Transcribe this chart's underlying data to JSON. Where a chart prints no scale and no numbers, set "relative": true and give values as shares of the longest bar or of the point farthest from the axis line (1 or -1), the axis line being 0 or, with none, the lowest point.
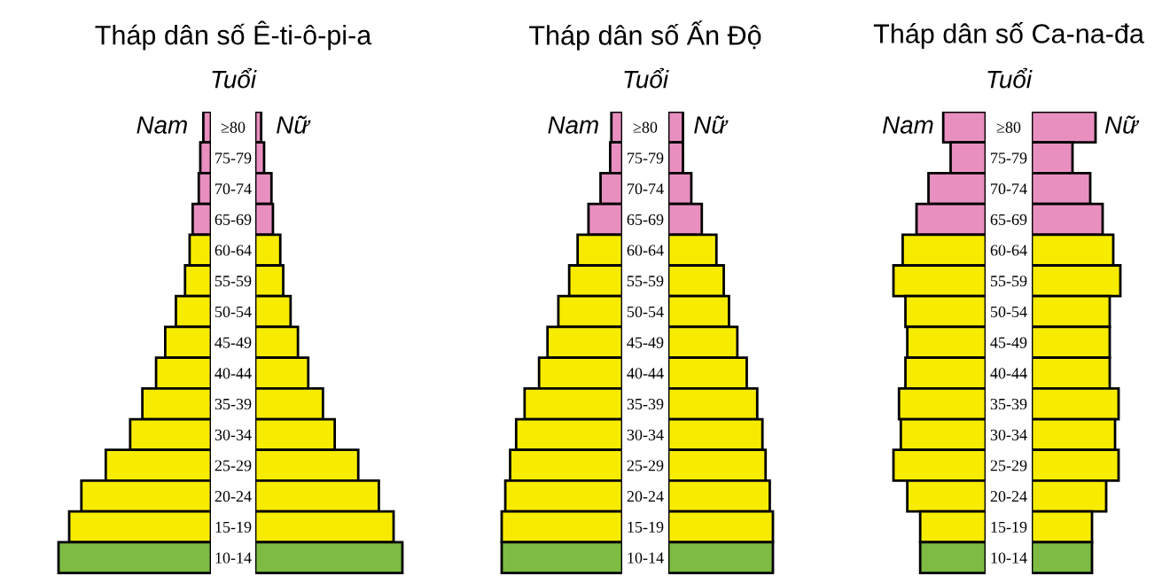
{
  "chart_data": [
    {
      "type": "bar",
      "orientation": "horizontal",
      "relative": true,
      "title": "Tháp dân số Ê-ti-ô-pi-a",
      "ylabel": "Tuổi",
      "categories": [
        "≥80",
        "75-79",
        "70-74",
        "65-69",
        "60-64",
        "55-59",
        "50-54",
        "45-49",
        "40-44",
        "35-39",
        "30-34",
        "25-29",
        "20-24",
        "15-19",
        "10-14"
      ],
      "series": [
        {
          "name": "Nam",
          "colors": [
            "#e98fc0",
            "#e98fc0",
            "#e98fc0",
            "#e98fc0",
            "#f7ec00",
            "#f7ec00",
            "#f7ec00",
            "#f7ec00",
            "#f7ec00",
            "#f7ec00",
            "#f7ec00",
            "#f7ec00",
            "#f7ec00",
            "#f7ec00",
            "#7dbb42"
          ],
          "values": [
            -0.05,
            -0.07,
            -0.08,
            -0.12,
            -0.14,
            -0.17,
            -0.23,
            -0.3,
            -0.36,
            -0.45,
            -0.53,
            -0.69,
            -0.85,
            -0.93,
            -1.0
          ]
        }
      ]
    },
    {
      "type": "bar",
      "orientation": "horizontal",
      "relative": true,
      "categories": [
        null,
        null,
        null,
        null,
        null,
        null,
        null,
        null,
        null,
        null,
        null,
        null,
        null,
        null,
        null
      ],
      "series": [
        {
          "name": "Nữ",
          "colors": [
            "#e98fc0",
            "#e98fc0",
            "#e98fc0",
            "#e98fc0",
            "#f7ec00",
            "#f7ec00",
            "#f7ec00",
            "#f7ec00",
            "#f7ec00",
            "#f7ec00",
            "#f7ec00",
            "#f7ec00",
            "#f7ec00",
            "#f7ec00",
            "#7dbb42"
          ],
          "values": [
            0.04,
            0.06,
            0.11,
            0.12,
            0.17,
            0.19,
            0.24,
            0.29,
            0.36,
            0.46,
            0.54,
            0.7,
            0.84,
            0.94,
            1.0
          ]
        }
      ]
    },
    {
      "type": "bar",
      "orientation": "horizontal",
      "relative": true,
      "title": "Tháp dân số Ấn Độ",
      "ylabel": "Tuổi",
      "categories": [
        "≥80",
        "75-79",
        "70-74",
        "65-69",
        "60-64",
        "55-59",
        "50-54",
        "45-49",
        "40-44",
        "35-39",
        "30-34",
        "25-29",
        "20-24",
        "15-19",
        "10-14"
      ],
      "series": [
        {
          "name": "Nam",
          "colors": [
            "#e98fc0",
            "#e98fc0",
            "#e98fc0",
            "#e98fc0",
            "#f7ec00",
            "#f7ec00",
            "#f7ec00",
            "#f7ec00",
            "#f7ec00",
            "#f7ec00",
            "#f7ec00",
            "#f7ec00",
            "#f7ec00",
            "#f7ec00",
            "#7dbb42"
          ],
          "values": [
            -0.09,
            -0.1,
            -0.18,
            -0.28,
            -0.37,
            -0.44,
            -0.53,
            -0.62,
            -0.69,
            -0.81,
            -0.88,
            -0.93,
            -0.97,
            -1.0,
            -1.0
          ]
        }
      ]
    },
    {
      "type": "bar",
      "orientation": "horizontal",
      "relative": true,
      "categories": [
        null,
        null,
        null,
        null,
        null,
        null,
        null,
        null,
        null,
        null,
        null,
        null,
        null,
        null,
        null
      ],
      "series": [
        {
          "name": "Nữ",
          "colors": [
            "#e98fc0",
            "#e98fc0",
            "#e98fc0",
            "#e98fc0",
            "#f7ec00",
            "#f7ec00",
            "#f7ec00",
            "#f7ec00",
            "#f7ec00",
            "#f7ec00",
            "#f7ec00",
            "#f7ec00",
            "#f7ec00",
            "#f7ec00",
            "#7dbb42"
          ],
          "values": [
            0.14,
            0.14,
            0.22,
            0.32,
            0.46,
            0.53,
            0.58,
            0.66,
            0.75,
            0.85,
            0.9,
            0.93,
            0.97,
            1.0,
            1.0
          ]
        }
      ]
    },
    {
      "type": "bar",
      "orientation": "horizontal",
      "relative": true,
      "title": "Tháp dân số Ca-na-đa",
      "ylabel": "Tuổi",
      "categories": [
        "≥80",
        "75-79",
        "70-74",
        "65-69",
        "60-64",
        "55-59",
        "50-54",
        "45-49",
        "40-44",
        "35-39",
        "30-34",
        "25-29",
        "20-24",
        "15-19",
        "10-14"
      ],
      "series": [
        {
          "name": "Nam",
          "colors": [
            "#e98fc0",
            "#e98fc0",
            "#e98fc0",
            "#e98fc0",
            "#f7ec00",
            "#f7ec00",
            "#f7ec00",
            "#f7ec00",
            "#f7ec00",
            "#f7ec00",
            "#f7ec00",
            "#f7ec00",
            "#f7ec00",
            "#f7ec00",
            "#7dbb42"
          ],
          "values": [
            -0.46,
            -0.38,
            -0.62,
            -0.75,
            -0.9,
            -1.0,
            -0.87,
            -0.85,
            -0.87,
            -0.94,
            -0.92,
            -1.0,
            -0.85,
            -0.71,
            -0.71
          ]
        }
      ]
    },
    {
      "type": "bar",
      "orientation": "horizontal",
      "relative": true,
      "categories": [
        null,
        null,
        null,
        null,
        null,
        null,
        null,
        null,
        null,
        null,
        null,
        null,
        null,
        null,
        null
      ],
      "series": [
        {
          "name": "Nữ",
          "colors": [
            "#e98fc0",
            "#e98fc0",
            "#e98fc0",
            "#e98fc0",
            "#f7ec00",
            "#f7ec00",
            "#f7ec00",
            "#f7ec00",
            "#f7ec00",
            "#f7ec00",
            "#f7ec00",
            "#f7ec00",
            "#f7ec00",
            "#f7ec00",
            "#7dbb42"
          ],
          "values": [
            0.72,
            0.46,
            0.66,
            0.8,
            0.92,
            1.0,
            0.88,
            0.88,
            0.88,
            0.98,
            0.94,
            0.98,
            0.84,
            0.68,
            0.68
          ]
        }
      ]
    }
  ]
}
